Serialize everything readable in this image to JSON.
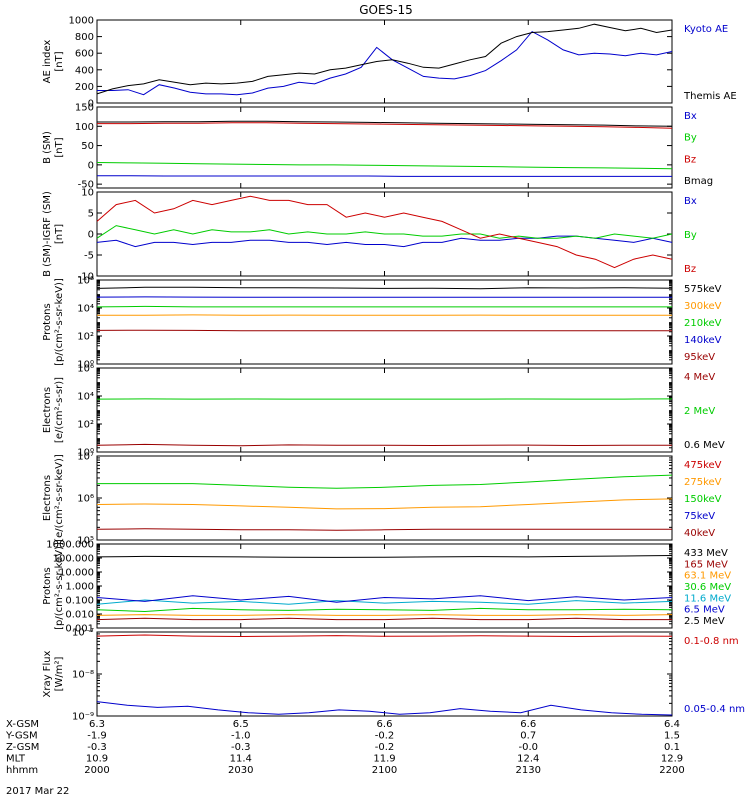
{
  "title": "GOES-15",
  "date_label": "2017 Mar 22",
  "chart_data": {
    "type": "line",
    "x_ticks": [
      "2000",
      "2030",
      "2100",
      "2130",
      "2200"
    ],
    "xlim": [
      "2000",
      "2200"
    ],
    "panels": [
      {
        "id": "ae",
        "ylabel": [
          "AE index",
          "[nT]"
        ],
        "yscale": "linear",
        "ylim": [
          0,
          1000
        ],
        "yticks": [
          0,
          200,
          400,
          600,
          800,
          1000
        ],
        "ytick_labels": [
          "0",
          "200",
          "400",
          "600",
          "800",
          "1000"
        ],
        "series": [
          {
            "name": "Kyoto AE",
            "color": "#0000cc",
            "values": [
              150,
              150,
              160,
              100,
              220,
              180,
              130,
              110,
              110,
              100,
              120,
              180,
              200,
              250,
              230,
              300,
              350,
              430,
              670,
              520,
              420,
              320,
              300,
              290,
              330,
              390,
              510,
              640,
              860,
              760,
              640,
              580,
              600,
              590,
              570,
              600,
              580,
              620
            ]
          },
          {
            "name": "Themis AE",
            "color": "#000000",
            "values": [
              110,
              170,
              210,
              230,
              280,
              250,
              220,
              240,
              230,
              240,
              260,
              320,
              340,
              360,
              350,
              400,
              420,
              460,
              500,
              520,
              480,
              430,
              420,
              470,
              520,
              560,
              720,
              800,
              850,
              860,
              880,
              900,
              950,
              910,
              870,
              900,
              850,
              880
            ]
          }
        ]
      },
      {
        "id": "b_sm",
        "ylabel": [
          "B (SM)",
          "[nT]"
        ],
        "yscale": "linear",
        "ylim": [
          -60,
          150
        ],
        "yticks": [
          -50,
          0,
          50,
          100,
          150
        ],
        "ytick_labels": [
          "-50",
          "0",
          "50",
          "100",
          "150"
        ],
        "series": [
          {
            "name": "Bx",
            "color": "#0000cc",
            "values": [
              -28,
              -28,
              -29,
              -29,
              -29,
              -29,
              -29,
              -29,
              -29,
              -30,
              -30,
              -30,
              -30,
              -30,
              -30,
              -30,
              -30,
              -30
            ]
          },
          {
            "name": "By",
            "color": "#00cc00",
            "values": [
              6,
              5,
              4,
              3,
              2,
              1,
              0,
              0,
              -1,
              -2,
              -3,
              -4,
              -5,
              -6,
              -7,
              -8,
              -9,
              -10
            ]
          },
          {
            "name": "Bz",
            "color": "#cc0000",
            "values": [
              107,
              107,
              108,
              108,
              109,
              109,
              108,
              107,
              106,
              105,
              104,
              103,
              102,
              101,
              100,
              99,
              97,
              95
            ]
          },
          {
            "name": "Bmag",
            "color": "#000000",
            "values": [
              111,
              111,
              112,
              112,
              113,
              113,
              112,
              111,
              110,
              109,
              108,
              107,
              106,
              105,
              104,
              103,
              101,
              100
            ]
          }
        ]
      },
      {
        "id": "b_igrf",
        "ylabel": [
          "B (SM)-IGRF (SM)",
          "[nT]"
        ],
        "yscale": "linear",
        "ylim": [
          -10,
          10
        ],
        "yticks": [
          -10,
          -5,
          0,
          5,
          10
        ],
        "ytick_labels": [
          "-10",
          "-5",
          "0",
          "5",
          "10"
        ],
        "series": [
          {
            "name": "Bx",
            "color": "#0000cc",
            "values": [
              -2,
              -1.5,
              -3,
              -2,
              -2,
              -2.5,
              -2,
              -2,
              -1.5,
              -1.5,
              -2,
              -2,
              -2.5,
              -2,
              -2.5,
              -2.5,
              -3,
              -2,
              -2,
              -1,
              -1.5,
              -1.5,
              -1,
              -1,
              -0.5,
              -0.5,
              -1,
              -1.5,
              -2,
              -1,
              -2
            ]
          },
          {
            "name": "By",
            "color": "#00cc00",
            "values": [
              -1,
              2,
              1,
              0,
              1,
              0,
              1,
              0.5,
              0.5,
              1,
              0,
              0.5,
              0,
              0,
              0.5,
              0,
              0,
              -0.5,
              -0.5,
              0,
              0,
              -1,
              -0.5,
              -1,
              -1,
              -0.5,
              -1,
              0,
              -0.5,
              -1,
              0
            ]
          },
          {
            "name": "Bz",
            "color": "#cc0000",
            "values": [
              3,
              7,
              8,
              5,
              6,
              8,
              7,
              8,
              9,
              8,
              8,
              7,
              7,
              4,
              5,
              4,
              5,
              4,
              3,
              1,
              -1,
              0,
              -1,
              -2,
              -3,
              -5,
              -6,
              -8,
              -6,
              -5,
              -6
            ]
          }
        ]
      },
      {
        "id": "protons1",
        "ylabel": [
          "Protons",
          "[p/(cm²-s-sr-keV)]"
        ],
        "yscale": "log",
        "ylim": [
          1,
          1000000
        ],
        "ytick_labels": [
          "10⁰",
          "10²",
          "10⁴",
          "10⁶"
        ],
        "ytick_values": [
          1,
          100,
          10000,
          1000000
        ],
        "series": [
          {
            "name": "575keV",
            "color": "#000000",
            "values": [
              250000,
              300000,
              300000,
              280000,
              280000,
              270000,
              250000,
              260000,
              240000,
              280000,
              270000,
              280000,
              260000
            ]
          },
          {
            "name": "300keV",
            "color": "#ff9900",
            "values": [
              3000,
              3000,
              3200,
              3000,
              3100,
              3000,
              3000,
              3000,
              3100,
              3000,
              3000,
              3000,
              3000
            ]
          },
          {
            "name": "210keV",
            "color": "#00cc00",
            "values": [
              12000,
              13000,
              12000,
              12000,
              12000,
              12000,
              12000,
              12000,
              12000,
              12000,
              12000,
              12000,
              12000
            ]
          },
          {
            "name": "140keV",
            "color": "#0000cc",
            "values": [
              60000,
              62000,
              60000,
              58000,
              58000,
              58000,
              58000,
              58000,
              58000,
              58000,
              58000,
              58000,
              58000
            ]
          },
          {
            "name": "95keV",
            "color": "#990000",
            "values": [
              250,
              260,
              250,
              240,
              240,
              240,
              240,
              240,
              240,
              240,
              240,
              240,
              240
            ]
          }
        ]
      },
      {
        "id": "electrons1",
        "ylabel": [
          "Electrons",
          "[e/(cm²-s-sr)]"
        ],
        "yscale": "log",
        "ylim": [
          1,
          1000000
        ],
        "ytick_labels": [
          "10⁰",
          "10²",
          "10⁴",
          "10⁶"
        ],
        "ytick_values": [
          1,
          100,
          10000,
          1000000
        ],
        "series": [
          {
            "name": "4 MeV",
            "color": "#990000",
            "values": [
              3,
              3.5,
              3,
              2.8,
              3.2,
              3,
              3,
              2.9,
              3,
              3.1,
              2.9,
              3,
              3
            ]
          },
          {
            "name": "2 MeV",
            "color": "#00cc00",
            "values": [
              6000,
              6200,
              6000,
              6100,
              6000,
              6000,
              6000,
              6000,
              6000,
              6100,
              6000,
              6000,
              6200
            ]
          },
          {
            "name": "0.6 MeV",
            "color": "#000000",
            "values": []
          }
        ]
      },
      {
        "id": "electrons2",
        "ylabel": [
          "Electrons",
          "[e/(cm²-s-sr-keV)]"
        ],
        "yscale": "log",
        "ylim": [
          100000,
          10000000
        ],
        "ytick_labels": [
          "10⁵",
          "10⁶",
          "10⁷"
        ],
        "ytick_values": [
          100000,
          1000000,
          10000000
        ],
        "series": [
          {
            "name": "475keV",
            "color": "#cc0000",
            "values": []
          },
          {
            "name": "275keV",
            "color": "#ff9900",
            "values": [
              700000,
              720000,
              700000,
              650000,
              600000,
              550000,
              560000,
              600000,
              620000,
              700000,
              800000,
              900000,
              950000
            ]
          },
          {
            "name": "150keV",
            "color": "#00cc00",
            "values": [
              2200000,
              2200000,
              2200000,
              2000000,
              1800000,
              1700000,
              1800000,
              2000000,
              2100000,
              2400000,
              2800000,
              3200000,
              3500000
            ]
          },
          {
            "name": "75keV",
            "color": "#0000cc",
            "values": []
          },
          {
            "name": "40keV",
            "color": "#990000",
            "values": [
              180000,
              185000,
              180000,
              175000,
              175000,
              170000,
              175000,
              180000,
              180000,
              180000,
              180000,
              180000,
              180000
            ]
          }
        ]
      },
      {
        "id": "protons2",
        "ylabel": [
          "Protons",
          "[p/(cm²-s-sr-keV)]"
        ],
        "yscale": "log",
        "ylim": [
          0.001,
          1000
        ],
        "ytick_labels": [
          "0.001",
          "0.010",
          "0.100",
          "1.000",
          "10.000",
          "100.000",
          "1000.000"
        ],
        "ytick_values": [
          0.001,
          0.01,
          0.1,
          1,
          10,
          100,
          1000
        ],
        "series": [
          {
            "name": "433 MeV",
            "color": "#000000",
            "values": [
              120,
              130,
              125,
              120,
              115,
              110,
              115,
              120,
              125,
              120,
              130,
              140,
              150
            ]
          },
          {
            "name": "165 MeV",
            "color": "#990000",
            "values": [
              0.004,
              0.005,
              0.004,
              0.004,
              0.005,
              0.004,
              0.004,
              0.005,
              0.004,
              0.004,
              0.005,
              0.004,
              0.004
            ]
          },
          {
            "name": "63.1 MeV",
            "color": "#ff9900",
            "values": [
              0.008,
              0.009,
              0.008,
              0.008,
              0.009,
              0.008,
              0.008,
              0.009,
              0.008,
              0.008,
              0.009,
              0.008,
              0.009
            ]
          },
          {
            "name": "30.6 MeV",
            "color": "#00cc00",
            "values": [
              0.02,
              0.015,
              0.025,
              0.02,
              0.018,
              0.022,
              0.02,
              0.018,
              0.025,
              0.02,
              0.02,
              0.022,
              0.02
            ]
          },
          {
            "name": "11.6 MeV",
            "color": "#00aacc",
            "values": [
              0.05,
              0.1,
              0.06,
              0.08,
              0.05,
              0.09,
              0.06,
              0.08,
              0.07,
              0.05,
              0.09,
              0.06,
              0.08
            ]
          },
          {
            "name": "6.5 MeV",
            "color": "#0000cc",
            "values": [
              0.15,
              0.08,
              0.2,
              0.1,
              0.18,
              0.07,
              0.15,
              0.12,
              0.2,
              0.09,
              0.17,
              0.1,
              0.15
            ]
          },
          {
            "name": "2.5 MeV",
            "color": "#000000",
            "values": []
          }
        ]
      },
      {
        "id": "xray",
        "ylabel": [
          "Xray Flux",
          "[W/m²]"
        ],
        "yscale": "log",
        "ylim": [
          1e-09,
          1e-07
        ],
        "ytick_labels": [
          "10⁻⁹",
          "10⁻⁸",
          "10⁻⁷"
        ],
        "ytick_values": [
          1e-09,
          1e-08,
          1e-07
        ],
        "series": [
          {
            "name": "0.1-0.8 nm",
            "color": "#cc0000",
            "values": [
              8e-08,
              8.5e-08,
              8e-08,
              7.8e-08,
              8e-08,
              8.2e-08,
              7.9e-08,
              8e-08,
              8.1e-08,
              8e-08,
              7.8e-08,
              8e-08,
              7.9e-08
            ]
          },
          {
            "name": "0.05-0.4 nm",
            "color": "#0000cc",
            "values": [
              2.2e-09,
              1.8e-09,
              1.6e-09,
              1.7e-09,
              1.4e-09,
              1.2e-09,
              1.1e-09,
              1.2e-09,
              1.4e-09,
              1.3e-09,
              1.1e-09,
              1.2e-09,
              1.5e-09,
              1.3e-09,
              1.2e-09,
              1.8e-09,
              1.4e-09,
              1.2e-09,
              1.1e-09,
              1e-09
            ]
          }
        ]
      }
    ],
    "ephemeris": {
      "rows": [
        {
          "label": "X-GSM",
          "values": [
            "6.3",
            "6.5",
            "6.6",
            "6.6",
            "6.4"
          ]
        },
        {
          "label": "Y-GSM",
          "values": [
            "-1.9",
            "-1.0",
            "-0.2",
            "0.7",
            "1.5"
          ]
        },
        {
          "label": "Z-GSM",
          "values": [
            "-0.3",
            "-0.3",
            "-0.2",
            "-0.0",
            "0.1"
          ]
        },
        {
          "label": "MLT",
          "values": [
            "10.9",
            "11.4",
            "11.9",
            "12.4",
            "12.9"
          ]
        },
        {
          "label": "hhmm",
          "values": [
            "2000",
            "2030",
            "2100",
            "2130",
            "2200"
          ]
        }
      ]
    }
  }
}
